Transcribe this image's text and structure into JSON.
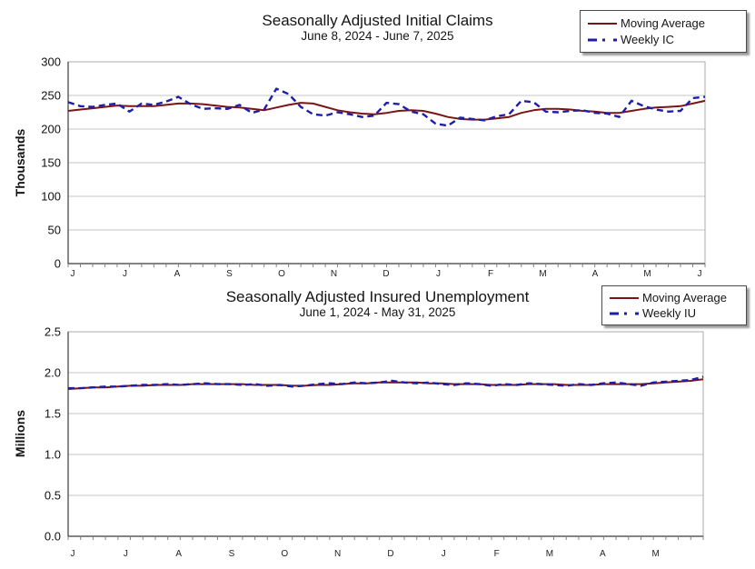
{
  "page": {
    "background": "#ffffff",
    "grid_color": "#c6c6c6",
    "border_color": "#ababab",
    "axis_color": "#3a3a3a",
    "tick_color": "#808080"
  },
  "charts": [
    {
      "title": "Seasonally Adjusted Initial Claims",
      "subtitle": "June 8, 2024 - June 7, 2025",
      "legend": [
        {
          "label": "Moving Average",
          "style": "solid",
          "color": "#7b1416"
        },
        {
          "label": "Weekly IC",
          "style": "dashed",
          "color": "#1e1ea8"
        }
      ],
      "chart_data": {
        "type": "line",
        "title": "Seasonally Adjusted Initial Claims",
        "subtitle": "June 8, 2024 - June 7, 2025",
        "xlabel": "",
        "ylabel": "Thousands",
        "ylim": [
          0,
          300
        ],
        "ytick_values": [
          0,
          50,
          100,
          150,
          200,
          250,
          300
        ],
        "ytick_labels": [
          "0",
          "50",
          "100",
          "150",
          "200",
          "250",
          "300"
        ],
        "x_month_labels": [
          "J",
          "J",
          "A",
          "S",
          "O",
          "N",
          "D",
          "J",
          "F",
          "M",
          "A",
          "M",
          "J"
        ],
        "grid": true,
        "legend_position": "top-right",
        "series": [
          {
            "name": "Moving Average",
            "values": [
              227,
              229,
              231,
              233,
              235,
              234,
              234,
              234,
              236,
              238,
              238,
              237,
              235,
              233,
              232,
              230,
              228,
              232,
              236,
              239,
              238,
              233,
              228,
              225,
              223,
              222,
              224,
              227,
              228,
              227,
              223,
              218,
              215,
              214,
              214,
              216,
              218,
              224,
              228,
              230,
              230,
              229,
              227,
              226,
              224,
              224,
              227,
              230,
              232,
              233,
              234,
              238,
              242
            ]
          },
          {
            "name": "Weekly IC",
            "values": [
              240,
              234,
              233,
              236,
              238,
              226,
              238,
              236,
              241,
              248,
              237,
              230,
              231,
              230,
              236,
              224,
              229,
              260,
              252,
              233,
              222,
              220,
              225,
              222,
              218,
              220,
              239,
              237,
              226,
              222,
              208,
              205,
              217,
              215,
              213,
              219,
              222,
              242,
              240,
              226,
              225,
              227,
              228,
              224,
              223,
              218,
              242,
              234,
              229,
              226,
              227,
              246,
              248
            ]
          }
        ]
      }
    },
    {
      "title": "Seasonally Adjusted Insured Unemployment",
      "subtitle": "June 1, 2024 - May 31, 2025",
      "legend": [
        {
          "label": "Moving Average",
          "style": "solid",
          "color": "#7b1416"
        },
        {
          "label": "Weekly IU",
          "style": "dashed",
          "color": "#1e1ea8"
        }
      ],
      "chart_data": {
        "type": "line",
        "title": "Seasonally Adjusted Insured Unemployment",
        "subtitle": "June 1, 2024 - May 31, 2025",
        "xlabel": "",
        "ylabel": "Millions",
        "ylim": [
          0,
          2.5
        ],
        "ytick_values": [
          0,
          0.5,
          1,
          1.5,
          2,
          2.5
        ],
        "ytick_labels": [
          "0.0",
          "0.5",
          "1.0",
          "1.5",
          "2.0",
          "2.5"
        ],
        "x_month_labels": [
          "J",
          "J",
          "A",
          "S",
          "O",
          "N",
          "D",
          "J",
          "F",
          "M",
          "A",
          "M"
        ],
        "grid": true,
        "legend_position": "top-right",
        "series": [
          {
            "name": "Moving Average",
            "values": [
              1.8,
              1.81,
              1.82,
              1.82,
              1.83,
              1.84,
              1.84,
              1.85,
              1.85,
              1.85,
              1.86,
              1.86,
              1.86,
              1.86,
              1.86,
              1.85,
              1.85,
              1.85,
              1.84,
              1.84,
              1.85,
              1.85,
              1.86,
              1.87,
              1.87,
              1.88,
              1.88,
              1.88,
              1.88,
              1.87,
              1.87,
              1.86,
              1.86,
              1.86,
              1.85,
              1.85,
              1.85,
              1.86,
              1.86,
              1.86,
              1.85,
              1.85,
              1.85,
              1.86,
              1.86,
              1.86,
              1.86,
              1.87,
              1.88,
              1.89,
              1.9,
              1.92
            ]
          },
          {
            "name": "Weekly IU",
            "values": [
              1.81,
              1.81,
              1.82,
              1.83,
              1.83,
              1.84,
              1.85,
              1.85,
              1.86,
              1.85,
              1.86,
              1.87,
              1.86,
              1.86,
              1.85,
              1.86,
              1.84,
              1.85,
              1.83,
              1.84,
              1.86,
              1.87,
              1.86,
              1.88,
              1.87,
              1.88,
              1.9,
              1.88,
              1.87,
              1.88,
              1.86,
              1.85,
              1.87,
              1.86,
              1.84,
              1.86,
              1.85,
              1.87,
              1.86,
              1.85,
              1.84,
              1.86,
              1.85,
              1.87,
              1.88,
              1.86,
              1.84,
              1.88,
              1.89,
              1.9,
              1.91,
              1.95
            ]
          }
        ]
      }
    }
  ]
}
